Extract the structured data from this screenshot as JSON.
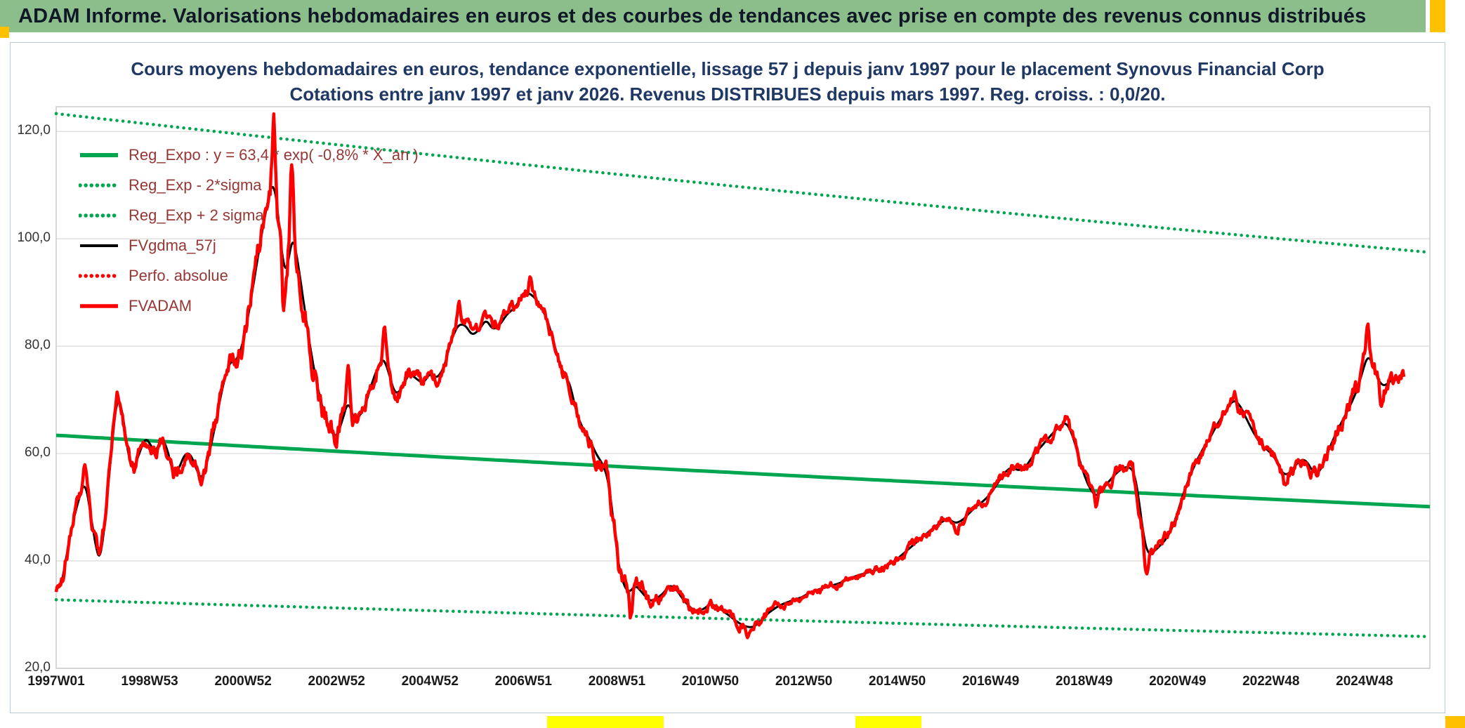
{
  "header": {
    "title": "ADAM Informe. Valorisations hebdomadaires en euros et des courbes de tendances avec prise en compte des revenus connus distribués",
    "bg_color": "#8CBE8C",
    "text_color": "#101828"
  },
  "accents": {
    "corner_orange": "#FFC000",
    "cell_yellow": "#FFFF00"
  },
  "chart_data": {
    "type": "line",
    "title": "Cours moyens hebdomadaires en euros, tendance exponentielle, lissage 57 j depuis janv 1997 pour le placement Synovus Financial Corp",
    "subtitle": "Cotations entre janv 1997 et janv 2026. Revenus DISTRIBUES depuis mars 1997. Reg. croiss. : 0,0/20.",
    "title_color": "#1F3864",
    "legend_position": "top-left",
    "legend_text_color": "#953735",
    "grid": true,
    "colors": {
      "grid": "#D9D9D9",
      "plot_border": "#BFBFBF"
    },
    "x_axis": {
      "range_years": [
        1997.0,
        2026.4
      ],
      "tick_labels": [
        "1997W01",
        "1998W53",
        "2000W52",
        "2002W52",
        "2004W52",
        "2006W51",
        "2008W51",
        "2010W50",
        "2012W50",
        "2014W50",
        "2016W49",
        "2018W49",
        "2020W49",
        "2022W48",
        "2024W48"
      ],
      "tick_years": [
        1997.0,
        1999.0,
        2001.0,
        2003.0,
        2005.0,
        2007.0,
        2009.0,
        2011.0,
        2013.0,
        2015.0,
        2017.0,
        2019.0,
        2021.0,
        2023.0,
        2025.0
      ]
    },
    "y_axis": {
      "range": [
        20,
        124.6
      ],
      "tick_values": [
        20,
        40,
        60,
        80,
        100,
        120
      ],
      "tick_labels": [
        "20,0",
        "40,0",
        "60,0",
        "80,0",
        "100,0",
        "120,0"
      ]
    },
    "data_end_year": 2025.85,
    "series": [
      {
        "name": "Reg_Expo : y = 63,4 * exp( -0,8% * X_an )",
        "role": "trend",
        "color": "#00A64F",
        "line_style": "solid",
        "line_width": 5,
        "formula": {
          "y0": 63.4,
          "annual_rate_pct": -0.8
        }
      },
      {
        "name": "Reg_Exp - 2*sigma",
        "role": "band_lower",
        "color": "#00A64F",
        "line_style": "dotted",
        "line_width": 4.5,
        "trend_factor": 0.517
      },
      {
        "name": "Reg_Exp + 2 sigma",
        "role": "band_upper",
        "color": "#00A64F",
        "line_style": "dotted",
        "line_width": 4.5,
        "trend_factor": 1.945
      },
      {
        "name": "FVgdma_57j",
        "role": "smooth",
        "color": "#000000",
        "line_style": "solid",
        "line_width": 3
      },
      {
        "name": "Perfo. absolue",
        "role": "perf",
        "color": "#FF0000",
        "line_style": "dotted",
        "line_width": 4.5,
        "plotted": false
      },
      {
        "name": "FVADAM",
        "role": "main",
        "color": "#FF0000",
        "line_style": "solid",
        "line_width": 4.5
      }
    ],
    "fvgdma_keypoints": [
      [
        1997.0,
        36
      ],
      [
        1997.08,
        34
      ],
      [
        1997.2,
        40
      ],
      [
        1997.35,
        47
      ],
      [
        1997.5,
        52
      ],
      [
        1997.62,
        55
      ],
      [
        1997.75,
        48
      ],
      [
        1997.88,
        41
      ],
      [
        1997.95,
        40
      ],
      [
        1998.05,
        48
      ],
      [
        1998.18,
        60
      ],
      [
        1998.3,
        71
      ],
      [
        1998.42,
        68
      ],
      [
        1998.55,
        59
      ],
      [
        1998.65,
        57
      ],
      [
        1998.78,
        60
      ],
      [
        1998.9,
        63
      ],
      [
        1999.0,
        62
      ],
      [
        1999.12,
        60
      ],
      [
        1999.25,
        63
      ],
      [
        1999.38,
        61
      ],
      [
        1999.5,
        56
      ],
      [
        1999.62,
        57
      ],
      [
        1999.75,
        60
      ],
      [
        1999.88,
        60
      ],
      [
        2000.0,
        57
      ],
      [
        2000.12,
        55
      ],
      [
        2000.25,
        59
      ],
      [
        2000.4,
        65
      ],
      [
        2000.55,
        72
      ],
      [
        2000.7,
        77
      ],
      [
        2000.82,
        77
      ],
      [
        2000.95,
        79
      ],
      [
        2001.1,
        85
      ],
      [
        2001.25,
        93
      ],
      [
        2001.4,
        101
      ],
      [
        2001.55,
        108
      ],
      [
        2001.65,
        111
      ],
      [
        2001.75,
        105
      ],
      [
        2001.85,
        95
      ],
      [
        2001.95,
        94
      ],
      [
        2002.05,
        101
      ],
      [
        2002.15,
        97
      ],
      [
        2002.3,
        88
      ],
      [
        2002.45,
        79
      ],
      [
        2002.6,
        72
      ],
      [
        2002.75,
        67
      ],
      [
        2002.88,
        64
      ],
      [
        2003.0,
        63
      ],
      [
        2003.12,
        66
      ],
      [
        2003.25,
        70
      ],
      [
        2003.38,
        66
      ],
      [
        2003.5,
        67
      ],
      [
        2003.62,
        69
      ],
      [
        2003.75,
        73
      ],
      [
        2003.88,
        76
      ],
      [
        2004.0,
        78
      ],
      [
        2004.12,
        75
      ],
      [
        2004.25,
        71
      ],
      [
        2004.4,
        72
      ],
      [
        2004.55,
        75
      ],
      [
        2004.7,
        74
      ],
      [
        2004.85,
        73
      ],
      [
        2005.0,
        75
      ],
      [
        2005.15,
        74
      ],
      [
        2005.3,
        76
      ],
      [
        2005.45,
        81
      ],
      [
        2005.6,
        84
      ],
      [
        2005.75,
        84
      ],
      [
        2005.9,
        82
      ],
      [
        2006.05,
        83
      ],
      [
        2006.2,
        85
      ],
      [
        2006.35,
        83
      ],
      [
        2006.5,
        84
      ],
      [
        2006.65,
        86
      ],
      [
        2006.8,
        87
      ],
      [
        2006.95,
        89
      ],
      [
        2007.1,
        90
      ],
      [
        2007.25,
        89
      ],
      [
        2007.4,
        87
      ],
      [
        2007.55,
        84
      ],
      [
        2007.7,
        79
      ],
      [
        2007.85,
        75
      ],
      [
        2008.0,
        73
      ],
      [
        2008.12,
        68
      ],
      [
        2008.25,
        65
      ],
      [
        2008.4,
        63
      ],
      [
        2008.55,
        60
      ],
      [
        2008.7,
        58
      ],
      [
        2008.82,
        55
      ],
      [
        2008.92,
        48
      ],
      [
        2009.02,
        40
      ],
      [
        2009.12,
        36
      ],
      [
        2009.25,
        34
      ],
      [
        2009.4,
        35.5
      ],
      [
        2009.55,
        34
      ],
      [
        2009.7,
        32.5
      ],
      [
        2009.85,
        33
      ],
      [
        2010.0,
        34
      ],
      [
        2010.12,
        35.5
      ],
      [
        2010.25,
        35
      ],
      [
        2010.4,
        33
      ],
      [
        2010.55,
        31.5
      ],
      [
        2010.7,
        30.5
      ],
      [
        2010.85,
        31
      ],
      [
        2011.0,
        32
      ],
      [
        2011.15,
        31.5
      ],
      [
        2011.3,
        30.5
      ],
      [
        2011.45,
        29.5
      ],
      [
        2011.6,
        28.5
      ],
      [
        2011.75,
        27.8
      ],
      [
        2011.9,
        27.6
      ],
      [
        2012.05,
        28.5
      ],
      [
        2012.2,
        30
      ],
      [
        2012.35,
        31
      ],
      [
        2012.5,
        31.8
      ],
      [
        2012.65,
        32.3
      ],
      [
        2012.8,
        32.8
      ],
      [
        2012.95,
        33.2
      ],
      [
        2013.15,
        34.2
      ],
      [
        2013.35,
        34.8
      ],
      [
        2013.55,
        35.3
      ],
      [
        2013.75,
        35.8
      ],
      [
        2013.95,
        36.6
      ],
      [
        2014.15,
        37.3
      ],
      [
        2014.35,
        37.8
      ],
      [
        2014.55,
        38.3
      ],
      [
        2014.75,
        39
      ],
      [
        2014.95,
        40
      ],
      [
        2015.15,
        41.5
      ],
      [
        2015.35,
        43
      ],
      [
        2015.55,
        44.5
      ],
      [
        2015.75,
        46
      ],
      [
        2015.95,
        47.3
      ],
      [
        2016.1,
        47.8
      ],
      [
        2016.25,
        47
      ],
      [
        2016.4,
        47.6
      ],
      [
        2016.55,
        49
      ],
      [
        2016.7,
        50.2
      ],
      [
        2016.85,
        51.2
      ],
      [
        2017.0,
        52.5
      ],
      [
        2017.15,
        54.5
      ],
      [
        2017.3,
        56.5
      ],
      [
        2017.45,
        57.5
      ],
      [
        2017.6,
        56.8
      ],
      [
        2017.75,
        57.5
      ],
      [
        2017.9,
        59.5
      ],
      [
        2018.05,
        61
      ],
      [
        2018.2,
        62.5
      ],
      [
        2018.35,
        64
      ],
      [
        2018.5,
        65.3
      ],
      [
        2018.62,
        65.8
      ],
      [
        2018.75,
        63.5
      ],
      [
        2018.88,
        59.5
      ],
      [
        2019.0,
        56
      ],
      [
        2019.12,
        53.5
      ],
      [
        2019.25,
        52
      ],
      [
        2019.38,
        53
      ],
      [
        2019.5,
        54.5
      ],
      [
        2019.65,
        56
      ],
      [
        2019.8,
        57.2
      ],
      [
        2019.95,
        57.6
      ],
      [
        2020.08,
        56.5
      ],
      [
        2020.18,
        51
      ],
      [
        2020.28,
        44
      ],
      [
        2020.38,
        41
      ],
      [
        2020.5,
        41.8
      ],
      [
        2020.62,
        42.8
      ],
      [
        2020.75,
        44
      ],
      [
        2020.88,
        46
      ],
      [
        2021.0,
        49
      ],
      [
        2021.12,
        52.5
      ],
      [
        2021.25,
        55.5
      ],
      [
        2021.4,
        58.5
      ],
      [
        2021.55,
        61
      ],
      [
        2021.7,
        63
      ],
      [
        2021.85,
        65.5
      ],
      [
        2022.0,
        67.5
      ],
      [
        2022.12,
        69.2
      ],
      [
        2022.22,
        70
      ],
      [
        2022.35,
        68.8
      ],
      [
        2022.5,
        66
      ],
      [
        2022.65,
        63.5
      ],
      [
        2022.8,
        61.5
      ],
      [
        2022.95,
        60.5
      ],
      [
        2023.1,
        59
      ],
      [
        2023.22,
        56.5
      ],
      [
        2023.35,
        56
      ],
      [
        2023.5,
        57.5
      ],
      [
        2023.62,
        58.8
      ],
      [
        2023.75,
        58.8
      ],
      [
        2023.88,
        56.8
      ],
      [
        2024.0,
        56.2
      ],
      [
        2024.12,
        58
      ],
      [
        2024.25,
        61
      ],
      [
        2024.4,
        64
      ],
      [
        2024.55,
        66.5
      ],
      [
        2024.7,
        69
      ],
      [
        2024.85,
        72
      ],
      [
        2025.0,
        76.5
      ],
      [
        2025.08,
        78.5
      ],
      [
        2025.18,
        76.5
      ],
      [
        2025.3,
        73.5
      ],
      [
        2025.42,
        72.5
      ],
      [
        2025.55,
        73.5
      ],
      [
        2025.7,
        74
      ],
      [
        2025.85,
        75
      ]
    ],
    "fvadam_volatility": [
      [
        1997,
        2.2
      ],
      [
        1998.5,
        2.0
      ],
      [
        2000,
        1.8
      ],
      [
        2001,
        3.2
      ],
      [
        2002,
        3.6
      ],
      [
        2003,
        2.6
      ],
      [
        2004,
        2.0
      ],
      [
        2005,
        1.7
      ],
      [
        2006,
        1.4
      ],
      [
        2007,
        1.5
      ],
      [
        2008,
        2.0
      ],
      [
        2009,
        2.8
      ],
      [
        2010,
        1.5
      ],
      [
        2011,
        1.3
      ],
      [
        2012,
        1.1
      ],
      [
        2013,
        0.9
      ],
      [
        2014,
        0.9
      ],
      [
        2015,
        1.0
      ],
      [
        2016,
        1.1
      ],
      [
        2017,
        1.2
      ],
      [
        2018,
        1.3
      ],
      [
        2019,
        1.4
      ],
      [
        2020,
        2.0
      ],
      [
        2021,
        1.4
      ],
      [
        2022,
        1.5
      ],
      [
        2023,
        1.5
      ],
      [
        2024,
        1.7
      ],
      [
        2025,
        2.2
      ],
      [
        2025.9,
        2.0
      ]
    ],
    "fvadam_extremes": [
      {
        "x": 1997.62,
        "dv": 2.5
      },
      {
        "x": 1998.3,
        "dv": 2
      },
      {
        "x": 2001.66,
        "dv": 12
      },
      {
        "x": 2001.87,
        "dv": -10
      },
      {
        "x": 2002.04,
        "dv": 15
      },
      {
        "x": 2003.25,
        "dv": 6
      },
      {
        "x": 2004.03,
        "dv": 5
      },
      {
        "x": 2005.62,
        "dv": 4.5
      },
      {
        "x": 2007.15,
        "dv": 2.5
      },
      {
        "x": 2008.0,
        "dv": -4
      },
      {
        "x": 2009.3,
        "dv": -4.5
      },
      {
        "x": 2010.12,
        "dv": 1.5
      },
      {
        "x": 2011.8,
        "dv": -1.5
      },
      {
        "x": 2016.28,
        "dv": -1.5
      },
      {
        "x": 2018.65,
        "dv": 2
      },
      {
        "x": 2019.25,
        "dv": -2
      },
      {
        "x": 2020.33,
        "dv": -3.5
      },
      {
        "x": 2022.22,
        "dv": 2.5
      },
      {
        "x": 2023.3,
        "dv": -2.5
      },
      {
        "x": 2025.06,
        "dv": 6
      },
      {
        "x": 2025.35,
        "dv": -3
      }
    ]
  }
}
